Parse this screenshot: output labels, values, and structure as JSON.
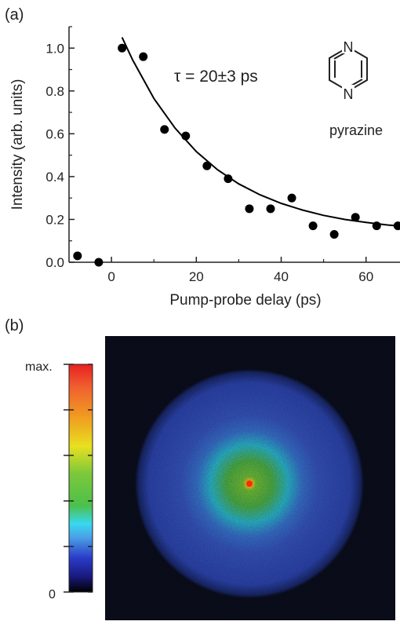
{
  "panel_a": {
    "label": "(a)",
    "annotation": "τ = 20±3 ps",
    "molecule_atom_top": "N",
    "molecule_atom_bottom": "N",
    "molecule_name": "pyrazine"
  },
  "panel_b": {
    "label": "(b)",
    "colorbar_max_label": "max.",
    "colorbar_min_label": "0"
  },
  "colors": {
    "marker": "#000000",
    "fit_line": "#000000",
    "image_background": "#0b0e1e",
    "ring_blue": "#3a5bcc",
    "center_green": "#58c23f",
    "center_red": "#ff2a00"
  },
  "chart_data": [
    {
      "type": "scatter",
      "title": "",
      "xlabel": "Pump-probe delay (ps)",
      "ylabel": "Intensity (arb. units)",
      "xlim": [
        -10,
        68
      ],
      "ylim": [
        0,
        1.1
      ],
      "xticks": [
        0,
        20,
        40,
        60
      ],
      "yticks": [
        0.0,
        0.2,
        0.4,
        0.6,
        0.8,
        1.0
      ],
      "ytick_labels": [
        "0.0",
        "0.2",
        "0.4",
        "0.6",
        "0.8",
        "1.0"
      ],
      "grid": false,
      "series": [
        {
          "x": [
            -8,
            -3,
            2.5,
            7.5,
            12.5,
            17.5,
            22.5,
            27.5,
            32.5,
            37.5,
            42.5,
            47.5,
            52.5,
            57.5,
            62.5,
            67.5
          ],
          "y": [
            0.03,
            0.0,
            1.0,
            0.96,
            0.62,
            0.59,
            0.45,
            0.39,
            0.25,
            0.25,
            0.3,
            0.17,
            0.13,
            0.21,
            0.17,
            0.17
          ]
        }
      ],
      "fit": {
        "model": "exponential decay",
        "tau": 20,
        "x": [
          2.5,
          5,
          10,
          15,
          20,
          25,
          30,
          35,
          40,
          45,
          50,
          55,
          60,
          65,
          68
        ],
        "y": [
          1.05,
          0.944,
          0.765,
          0.626,
          0.517,
          0.432,
          0.366,
          0.315,
          0.275,
          0.244,
          0.219,
          0.2,
          0.186,
          0.174,
          0.169
        ]
      }
    },
    {
      "type": "heatmap",
      "colorbar": {
        "colors": [
          "#000000",
          "#1a1a80",
          "#2b3cc8",
          "#4aa0e6",
          "#38d8f0",
          "#4cc04a",
          "#7cc83a",
          "#e8e020",
          "#f0a020",
          "#f06030",
          "#e82020"
        ],
        "tick_count": 6,
        "labels": [
          "0",
          "max."
        ]
      }
    }
  ]
}
